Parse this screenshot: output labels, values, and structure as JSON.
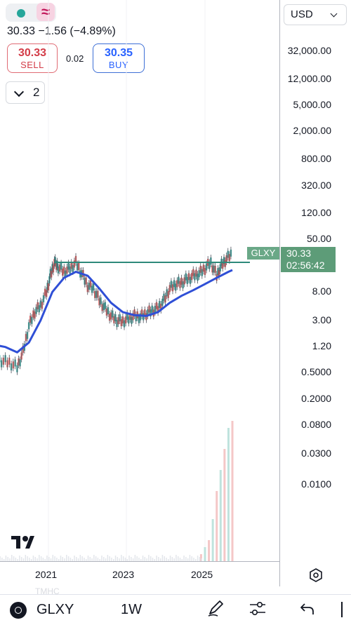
{
  "header": {
    "price_line": "30.33  −1.56 (−4.89%)",
    "sell": {
      "value": "30.33",
      "label": "SELL"
    },
    "buy": {
      "value": "30.35",
      "label": "BUY"
    },
    "spread": "0.02",
    "indicators_count": "2",
    "currency": "USD",
    "colors": {
      "sell": "#d33b47",
      "buy": "#2962ff",
      "up": "#26a69a",
      "down": "#ef5350"
    }
  },
  "chart_data": {
    "type": "line",
    "symbol_tag": "GLXY",
    "last_price": "30.33",
    "countdown": "02:56:42",
    "y_scale": "log",
    "y_ticks": [
      "32,000.00",
      "12,000.00",
      "5,000.00",
      "2,000.00",
      "800.00",
      "320.00",
      "120.00",
      "50.00",
      "8.00",
      "3.00",
      "1.20",
      "0.5000",
      "0.2000",
      "0.0800",
      "0.0300",
      "0.0100"
    ],
    "x_ticks": [
      "2021",
      "2023",
      "2025"
    ],
    "series": [
      {
        "type": "candlestick-approx",
        "color": "#5d6470",
        "x": [
          2019.6,
          2019.8,
          2020.0,
          2020.2,
          2020.35,
          2020.5,
          2020.65,
          2020.8,
          2020.95,
          2021.05,
          2021.15,
          2021.25,
          2021.4,
          2021.55,
          2021.7,
          2021.85,
          2022.0,
          2022.15,
          2022.3,
          2022.45,
          2022.6,
          2022.75,
          2022.9,
          2023.05,
          2023.2,
          2023.35,
          2023.5,
          2023.65,
          2023.8,
          2023.95,
          2024.1,
          2024.25,
          2024.4,
          2024.55,
          2024.7,
          2024.85,
          2025.0,
          2025.15,
          2025.3,
          2025.42,
          2025.55,
          2025.7
        ],
        "y": [
          0.8,
          0.75,
          0.7,
          0.6,
          1.0,
          2.5,
          4.0,
          5.0,
          8.0,
          14.0,
          22.0,
          19.0,
          16.0,
          18.0,
          22.0,
          15.0,
          10.0,
          9.0,
          6.0,
          4.5,
          3.5,
          3.0,
          2.9,
          3.2,
          3.5,
          3.4,
          3.8,
          4.2,
          4.6,
          6.0,
          9.0,
          10.5,
          11.0,
          12.5,
          14.0,
          15.0,
          18.0,
          22.0,
          14.0,
          20.0,
          25.0,
          30.33
        ]
      },
      {
        "type": "moving-average",
        "color": "#2f4fd6",
        "x": [
          2019.6,
          2019.9,
          2020.2,
          2020.5,
          2020.8,
          2021.1,
          2021.4,
          2021.7,
          2022.0,
          2022.3,
          2022.6,
          2022.9,
          2023.2,
          2023.5,
          2023.8,
          2024.1,
          2024.4,
          2024.7,
          2025.0,
          2025.3,
          2025.6,
          2025.7
        ],
        "y": [
          1.3,
          1.2,
          1.0,
          1.4,
          3.0,
          8.0,
          13.0,
          16.0,
          14.0,
          9.0,
          5.5,
          4.0,
          3.6,
          3.5,
          4.0,
          5.5,
          7.0,
          8.5,
          10.5,
          13.0,
          16.0,
          17.0
        ]
      }
    ],
    "horizontal_level": 20.0,
    "volume": {
      "x": [
        2024.9,
        2025.0,
        2025.1,
        2025.2,
        2025.3,
        2025.4,
        2025.5,
        2025.6,
        2025.7
      ],
      "values": [
        0.05,
        0.1,
        0.15,
        0.3,
        0.5,
        0.65,
        0.8,
        0.95,
        1.0
      ]
    }
  },
  "footer": {
    "symbol": "GLXY",
    "interval": "1W",
    "watermark": "TMHC"
  }
}
